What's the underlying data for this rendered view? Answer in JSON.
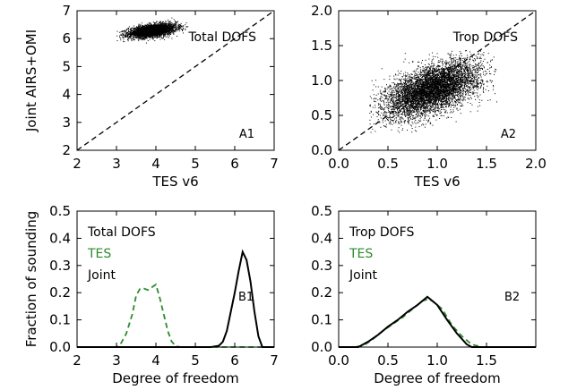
{
  "chart_data": [
    {
      "id": "A1",
      "type": "scatter",
      "panel_label": "A1",
      "annotation": "Total DOFS",
      "xlabel": "TES v6",
      "ylabel": "Joint AIRS+OMI",
      "xlim": [
        2,
        7
      ],
      "ylim": [
        2,
        7
      ],
      "xticks": [
        2,
        3,
        4,
        5,
        6,
        7
      ],
      "yticks": [
        2,
        3,
        4,
        5,
        6,
        7
      ],
      "reference_line": {
        "style": "dashed",
        "x": [
          2,
          7
        ],
        "y": [
          2,
          7
        ]
      },
      "cloud": {
        "n": 3500,
        "x_mean": 3.9,
        "x_sd": 0.3,
        "y_mean": 6.3,
        "y_sd": 0.12,
        "corr": 0.45,
        "x_range": [
          3.0,
          4.8
        ],
        "y_range": [
          5.85,
          6.8
        ]
      }
    },
    {
      "id": "A2",
      "type": "scatter",
      "panel_label": "A2",
      "annotation": "Trop DOFS",
      "xlabel": "TES v6",
      "ylabel": "",
      "xlim": [
        0.0,
        2.0
      ],
      "ylim": [
        0.0,
        2.0
      ],
      "xticks": [
        "0.0",
        "0.5",
        "1.0",
        "1.5",
        "2.0"
      ],
      "yticks": [
        "0.0",
        "0.5",
        "1.0",
        "1.5",
        "2.0"
      ],
      "reference_line": {
        "style": "dashed",
        "x": [
          0,
          2
        ],
        "y": [
          0,
          2
        ]
      },
      "cloud": {
        "n": 6000,
        "x_mean": 0.95,
        "x_sd": 0.24,
        "y_mean": 0.88,
        "y_sd": 0.2,
        "corr": 0.55,
        "x_range": [
          0.3,
          1.6
        ],
        "y_range": [
          0.25,
          1.45
        ]
      }
    },
    {
      "id": "B1",
      "type": "line",
      "panel_label": "B1",
      "legend": [
        {
          "text": "Total DOFS",
          "color": "#000000"
        },
        {
          "text": "TES",
          "color": "#2e8b2e"
        },
        {
          "text": "Joint",
          "color": "#000000"
        }
      ],
      "xlabel": "Degree of freedom",
      "ylabel": "Fraction of sounding",
      "xlim": [
        2,
        7
      ],
      "ylim": [
        0,
        0.5
      ],
      "xticks": [
        "2",
        "3",
        "4",
        "5",
        "6",
        "7"
      ],
      "yticks": [
        "0.0",
        "0.1",
        "0.2",
        "0.3",
        "0.4",
        "0.5"
      ],
      "series": [
        {
          "name": "TES",
          "color": "#2e8b2e",
          "style": "dashed",
          "x": [
            2.0,
            3.0,
            3.1,
            3.25,
            3.4,
            3.5,
            3.6,
            3.7,
            3.8,
            3.9,
            4.0,
            4.1,
            4.2,
            4.3,
            4.4,
            4.5,
            4.6,
            7.0
          ],
          "y": [
            0,
            0,
            0.01,
            0.05,
            0.12,
            0.19,
            0.215,
            0.215,
            0.21,
            0.22,
            0.23,
            0.18,
            0.12,
            0.06,
            0.02,
            0.005,
            0,
            0
          ]
        },
        {
          "name": "Joint",
          "color": "#000000",
          "style": "solid",
          "x": [
            2.0,
            5.4,
            5.6,
            5.7,
            5.8,
            5.9,
            6.0,
            6.1,
            6.2,
            6.3,
            6.4,
            6.5,
            6.6,
            6.7,
            7.0
          ],
          "y": [
            0,
            0,
            0.005,
            0.02,
            0.06,
            0.13,
            0.2,
            0.28,
            0.35,
            0.32,
            0.24,
            0.13,
            0.04,
            0,
            0
          ]
        }
      ]
    },
    {
      "id": "B2",
      "type": "line",
      "panel_label": "B2",
      "legend": [
        {
          "text": "Trop DOFS",
          "color": "#000000"
        },
        {
          "text": "TES",
          "color": "#2e8b2e"
        },
        {
          "text": "Joint",
          "color": "#000000"
        }
      ],
      "xlabel": "Degree of freedom",
      "ylabel": "",
      "xlim": [
        0.0,
        2.0
      ],
      "ylim": [
        0,
        0.5
      ],
      "xticks": [
        "0.0",
        "0.5",
        "1.0",
        "1.5"
      ],
      "yticks": [
        "0.0",
        "0.1",
        "0.2",
        "0.3",
        "0.4",
        "0.5"
      ],
      "series": [
        {
          "name": "TES",
          "color": "#2e8b2e",
          "style": "dashed",
          "x": [
            0.0,
            0.15,
            0.25,
            0.35,
            0.45,
            0.55,
            0.65,
            0.75,
            0.85,
            0.9,
            0.95,
            1.05,
            1.15,
            1.25,
            1.35,
            1.45,
            2.0
          ],
          "y": [
            0,
            0,
            0.005,
            0.03,
            0.06,
            0.085,
            0.11,
            0.14,
            0.17,
            0.175,
            0.17,
            0.14,
            0.08,
            0.04,
            0.01,
            0,
            0
          ]
        },
        {
          "name": "Joint",
          "color": "#000000",
          "style": "solid",
          "x": [
            0.0,
            0.2,
            0.3,
            0.4,
            0.5,
            0.6,
            0.7,
            0.8,
            0.9,
            1.0,
            1.1,
            1.2,
            1.3,
            1.35,
            2.0
          ],
          "y": [
            0,
            0,
            0.02,
            0.045,
            0.075,
            0.1,
            0.13,
            0.155,
            0.185,
            0.155,
            0.1,
            0.05,
            0.01,
            0,
            0
          ]
        }
      ]
    }
  ]
}
